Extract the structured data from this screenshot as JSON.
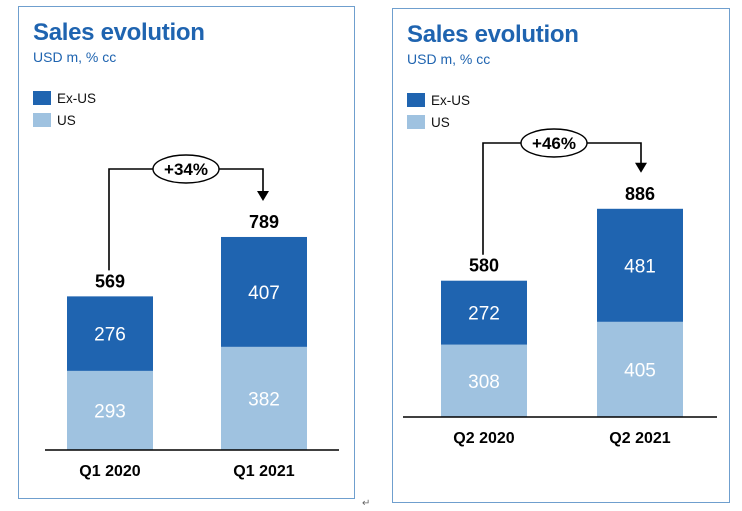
{
  "colors": {
    "ex_us": "#1f64b0",
    "us": "#9fc2e0",
    "title": "#1f64b0",
    "border": "#6f9fce"
  },
  "panels": [
    {
      "title": "Sales evolution",
      "subtitle": "USD m, % cc",
      "legend": [
        {
          "label": "Ex-US",
          "color": "#1f64b0"
        },
        {
          "label": "US",
          "color": "#9fc2e0"
        }
      ]
    },
    {
      "title": "Sales evolution",
      "subtitle": "USD m, % cc",
      "legend": [
        {
          "label": "Ex-US",
          "color": "#1f64b0"
        },
        {
          "label": "US",
          "color": "#9fc2e0"
        }
      ]
    }
  ],
  "chart_data": [
    {
      "type": "bar",
      "stacked": true,
      "title": "Sales evolution",
      "subtitle": "USD m, % cc",
      "categories": [
        "Q1 2020",
        "Q1 2021"
      ],
      "series": [
        {
          "name": "US",
          "values": [
            293,
            382
          ]
        },
        {
          "name": "Ex-US",
          "values": [
            276,
            407
          ]
        }
      ],
      "totals": [
        "569",
        "789"
      ],
      "growth_label": "+34%",
      "legend_position": "top-left",
      "grid": false
    },
    {
      "type": "bar",
      "stacked": true,
      "title": "Sales evolution",
      "subtitle": "USD m, % cc",
      "categories": [
        "Q2 2020",
        "Q2 2021"
      ],
      "series": [
        {
          "name": "US",
          "values": [
            308,
            405
          ]
        },
        {
          "name": "Ex-US",
          "values": [
            272,
            481
          ]
        }
      ],
      "totals": [
        "580",
        "886"
      ],
      "growth_label": "+46%",
      "legend_position": "top-left",
      "grid": false
    }
  ],
  "page_mark": "↵"
}
